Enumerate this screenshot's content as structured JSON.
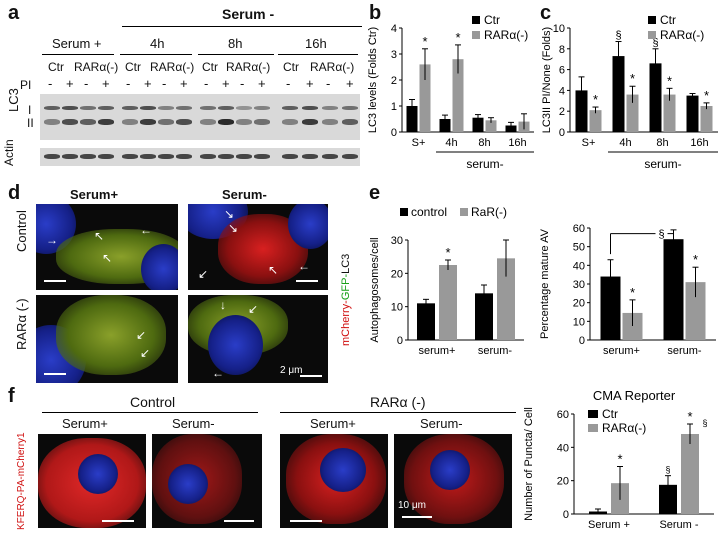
{
  "panels": {
    "a": "a",
    "b": "b",
    "c": "c",
    "d": "d",
    "e": "e",
    "f": "f"
  },
  "blot": {
    "serum_minus_header": "Serum -",
    "groups": [
      "Serum +",
      "4h",
      "8h",
      "16h"
    ],
    "conditions": [
      "Ctr",
      "RARα(-)"
    ],
    "pi_label": "PI",
    "pi_signs": [
      "-",
      "+",
      "-",
      "+"
    ],
    "lc3_label": "LC3",
    "lc3_bands": [
      "I",
      "II"
    ],
    "actin_label": "Actin"
  },
  "micro_d": {
    "col_labels": [
      "Serum+",
      "Serum-"
    ],
    "row_labels": [
      "Control",
      "RARα (-)"
    ],
    "reporter_parts": [
      "mCherry-",
      "GFP-",
      "LC3"
    ],
    "scale": "2 μm"
  },
  "micro_f": {
    "group_labels": [
      "Control",
      "RARα (-)"
    ],
    "col_labels": [
      "Serum+",
      "Serum-",
      "Serum+",
      "Serum-"
    ],
    "reporter": "KFERQ-PA-mCherry1",
    "scale": "10 μm"
  },
  "chart_data": [
    {
      "id": "b",
      "type": "bar",
      "ylabel": "LC3 levels (Folds Ctr)",
      "ylim": [
        0,
        4
      ],
      "yticks": [
        0,
        1,
        2,
        3,
        4
      ],
      "categories": [
        "S+",
        "4h",
        "8h",
        "16h"
      ],
      "group_label": "serum-",
      "series": [
        {
          "name": "Ctr",
          "color": "#000000",
          "values": [
            1.0,
            0.5,
            0.55,
            0.25
          ],
          "errors": [
            0.25,
            0.15,
            0.12,
            0.12
          ]
        },
        {
          "name": "RARα(-)",
          "color": "#999999",
          "values": [
            2.6,
            2.8,
            0.45,
            0.4
          ],
          "errors": [
            0.6,
            0.55,
            0.1,
            0.3
          ]
        }
      ],
      "markers": [
        "*",
        "*",
        "",
        ""
      ]
    },
    {
      "id": "c",
      "type": "bar",
      "ylabel": "LC3II PI/None (Folds)",
      "ylim": [
        0,
        10
      ],
      "yticks": [
        0,
        2,
        4,
        6,
        8,
        10
      ],
      "categories": [
        "S+",
        "4h",
        "8h",
        "16h"
      ],
      "group_label": "serum-",
      "series": [
        {
          "name": "Ctr",
          "color": "#000000",
          "values": [
            4.0,
            7.3,
            6.6,
            3.5
          ],
          "errors": [
            1.3,
            1.4,
            1.4,
            0.2
          ]
        },
        {
          "name": "RARα(-)",
          "color": "#999999",
          "values": [
            2.1,
            3.6,
            3.6,
            2.5
          ],
          "errors": [
            0.3,
            0.8,
            0.6,
            0.3
          ]
        }
      ],
      "top_marks": [
        "",
        "§",
        "§",
        ""
      ],
      "markers": [
        "*",
        "*",
        "*",
        "*"
      ]
    },
    {
      "id": "e1",
      "type": "bar",
      "ylabel": "Autophagosomes/cell",
      "ylim": [
        0,
        30
      ],
      "yticks": [
        0,
        10,
        20,
        30
      ],
      "categories": [
        "serum+",
        "serum-"
      ],
      "series": [
        {
          "name": "control",
          "color": "#000000",
          "values": [
            11,
            14
          ],
          "errors": [
            1.2,
            2.5
          ]
        },
        {
          "name": "RaR(-)",
          "color": "#999999",
          "values": [
            22.5,
            24.5
          ],
          "errors": [
            1.5,
            5.5
          ]
        }
      ],
      "markers": [
        "*",
        ""
      ]
    },
    {
      "id": "e2",
      "type": "bar",
      "ylabel": "Percentage mature AV",
      "ylim": [
        0,
        60
      ],
      "yticks": [
        0,
        10,
        20,
        30,
        40,
        50,
        60
      ],
      "categories": [
        "serum+",
        "serum-"
      ],
      "series": [
        {
          "color": "#000000",
          "values": [
            34,
            54
          ],
          "errors": [
            9,
            5
          ]
        },
        {
          "color": "#999999",
          "values": [
            14.5,
            31
          ],
          "errors": [
            7,
            8
          ]
        }
      ],
      "markers": [
        "*",
        "*"
      ],
      "bracket": "§"
    },
    {
      "id": "f",
      "type": "bar",
      "title": "CMA Reporter",
      "ylabel": "Number of Puncta/ Cell",
      "ylim": [
        0,
        60
      ],
      "yticks": [
        0,
        20,
        40,
        60
      ],
      "categories": [
        "Serum +",
        "Serum -"
      ],
      "series": [
        {
          "name": "Ctr",
          "color": "#000000",
          "values": [
            1.5,
            17.5
          ],
          "errors": [
            1.5,
            5.5
          ]
        },
        {
          "name": "RARα(-)",
          "color": "#999999",
          "values": [
            18.5,
            48
          ],
          "errors": [
            10,
            6
          ]
        }
      ],
      "markers": [
        "*",
        "*"
      ],
      "sections": [
        "",
        "§"
      ],
      "sections2": [
        "",
        "§"
      ]
    }
  ]
}
